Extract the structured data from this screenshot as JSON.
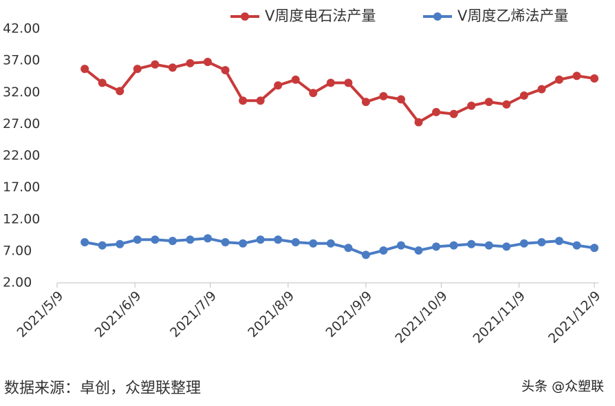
{
  "chart_data": {
    "type": "line",
    "x": [
      "2021-05-20",
      "2021-05-27",
      "2021-06-03",
      "2021-06-10",
      "2021-06-17",
      "2021-06-24",
      "2021-07-01",
      "2021-07-08",
      "2021-07-15",
      "2021-07-22",
      "2021-07-29",
      "2021-08-05",
      "2021-08-12",
      "2021-08-19",
      "2021-08-26",
      "2021-09-02",
      "2021-09-09",
      "2021-09-16",
      "2021-09-23",
      "2021-09-30",
      "2021-10-07",
      "2021-10-14",
      "2021-10-21",
      "2021-10-28",
      "2021-11-04",
      "2021-11-11",
      "2021-11-18",
      "2021-11-25",
      "2021-12-02",
      "2021-12-09"
    ],
    "series": [
      {
        "name": "V周度电石法产量",
        "color": "#c83a3a",
        "values": [
          35.7,
          33.5,
          32.2,
          35.7,
          36.4,
          35.9,
          36.6,
          36.8,
          35.5,
          30.7,
          30.7,
          33.1,
          34.0,
          31.9,
          33.5,
          33.5,
          30.5,
          31.4,
          30.9,
          27.3,
          28.9,
          28.6,
          29.9,
          30.5,
          30.1,
          31.5,
          32.5,
          34.0,
          34.6,
          34.2
        ]
      },
      {
        "name": "V周度乙烯法产量",
        "color": "#4a7cc4",
        "values": [
          8.4,
          7.9,
          8.1,
          8.8,
          8.8,
          8.6,
          8.8,
          9.0,
          8.4,
          8.2,
          8.8,
          8.8,
          8.4,
          8.2,
          8.2,
          7.5,
          6.4,
          7.1,
          7.9,
          7.1,
          7.7,
          7.9,
          8.1,
          7.9,
          7.7,
          8.2,
          8.4,
          8.6,
          7.9,
          7.5
        ]
      }
    ],
    "xlim": [
      "2021-05-09",
      "2021-12-09"
    ],
    "xticks": [
      {
        "value": "2021-05-09",
        "label": "2021/5/9"
      },
      {
        "value": "2021-06-09",
        "label": "2021/6/9"
      },
      {
        "value": "2021-07-09",
        "label": "2021/7/9"
      },
      {
        "value": "2021-08-09",
        "label": "2021/8/9"
      },
      {
        "value": "2021-09-09",
        "label": "2021/9/9"
      },
      {
        "value": "2021-10-09",
        "label": "2021/10/9"
      },
      {
        "value": "2021-11-09",
        "label": "2021/11/9"
      },
      {
        "value": "2021-12-09",
        "label": "2021/12/9"
      }
    ],
    "ylim": [
      2,
      42
    ],
    "yticks": [
      {
        "value": 2,
        "label": "2.00"
      },
      {
        "value": 7,
        "label": "7.00"
      },
      {
        "value": 12,
        "label": "12.00"
      },
      {
        "value": 17,
        "label": "17.00"
      },
      {
        "value": 22,
        "label": "22.00"
      },
      {
        "value": 27,
        "label": "27.00"
      },
      {
        "value": 32,
        "label": "32.00"
      },
      {
        "value": 37,
        "label": "37.00"
      },
      {
        "value": 42,
        "label": "42.00"
      }
    ],
    "legend": "top",
    "source": "数据来源：卓创，众塑联整理",
    "watermark": "头条 @众塑联"
  }
}
